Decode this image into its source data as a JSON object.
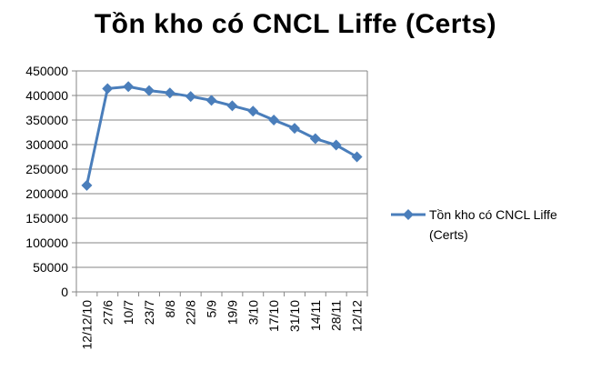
{
  "chart_data": {
    "type": "line",
    "title": "Tồn kho có CNCL Liffe (Certs)",
    "xlabel": "",
    "ylabel": "",
    "categories": [
      "12/12/10",
      "27/6",
      "10/7",
      "23/7",
      "8/8",
      "22/8",
      "5/9",
      "19/9",
      "3/10",
      "17/10",
      "31/10",
      "14/11",
      "28/11",
      "12/12"
    ],
    "series": [
      {
        "name": "Tồn kho có CNCL Liffe (Certs)",
        "values": [
          217000,
          414000,
          418000,
          410000,
          405000,
          398000,
          390000,
          379000,
          368000,
          350000,
          333000,
          312000,
          299000,
          275000
        ]
      }
    ],
    "ylim": [
      0,
      450000
    ],
    "yticks": [
      "0",
      "50000",
      "100000",
      "150000",
      "200000",
      "250000",
      "300000",
      "350000",
      "400000",
      "450000"
    ],
    "grid": "horizontal",
    "legend_position": "right",
    "colors": {
      "series": "#4a7ebb",
      "grid": "#868686",
      "axis": "#868686"
    }
  }
}
